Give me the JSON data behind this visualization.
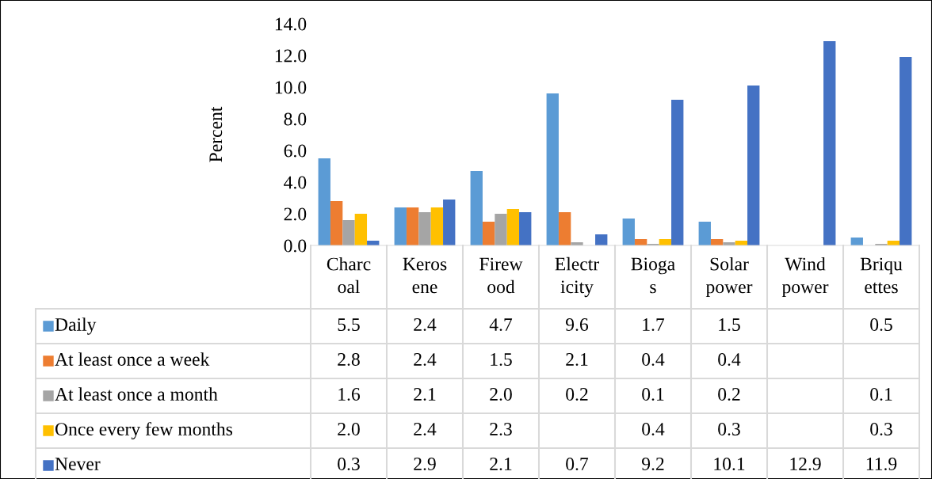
{
  "chart_data": {
    "type": "bar",
    "ylabel": "Percent",
    "categories": [
      "Charc\noal",
      "Keros\nene",
      "Firew\nood",
      "Electr\nicity",
      "Bioga\ns",
      "Solar\npower",
      "Wind\npower",
      "Briqu\nettes"
    ],
    "series": [
      {
        "name": "Daily",
        "color": "#5b9bd5",
        "values": [
          5.5,
          2.4,
          4.7,
          9.6,
          1.7,
          1.5,
          null,
          0.5
        ],
        "value_labels": [
          "5.5",
          "2.4",
          "4.7",
          "9.6",
          "1.7",
          "1.5",
          null,
          "0.5"
        ]
      },
      {
        "name": "At least once a week",
        "color": "#ed7d31",
        "values": [
          2.8,
          2.4,
          1.5,
          2.1,
          0.4,
          0.4,
          null,
          null
        ],
        "value_labels": [
          "2.8",
          "2.4",
          "1.5",
          "2.1",
          "0.4",
          "0.4",
          null,
          null
        ]
      },
      {
        "name": "At least once a month",
        "color": "#a5a5a5",
        "values": [
          1.6,
          2.1,
          2.0,
          0.2,
          0.1,
          0.2,
          null,
          0.1
        ],
        "value_labels": [
          "1.6",
          "2.1",
          "2.0",
          "0.2",
          "0.1",
          "0.2",
          null,
          "0.1"
        ]
      },
      {
        "name": "Once every few months",
        "color": "#ffc000",
        "values": [
          2.0,
          2.4,
          2.3,
          null,
          0.4,
          0.3,
          null,
          0.3
        ],
        "value_labels": [
          "2.0",
          "2.4",
          "2.3",
          null,
          "0.4",
          "0.3",
          null,
          "0.3"
        ]
      },
      {
        "name": "Never",
        "color": "#4472c4",
        "values": [
          0.3,
          2.9,
          2.1,
          0.7,
          9.2,
          10.1,
          12.9,
          11.9
        ],
        "value_labels": [
          "0.3",
          "2.9",
          "2.1",
          "0.7",
          "9.2",
          "10.1",
          "12.9",
          "11.9"
        ]
      }
    ],
    "ylim": [
      0,
      14
    ],
    "yticks": [
      {
        "value": 0,
        "label": "0.0"
      },
      {
        "value": 2,
        "label": "2.0"
      },
      {
        "value": 4,
        "label": "4.0"
      },
      {
        "value": 6,
        "label": "6.0"
      },
      {
        "value": 8,
        "label": "8.0"
      },
      {
        "value": 10,
        "label": "10.0"
      },
      {
        "value": 12,
        "label": "12.0"
      },
      {
        "value": 14,
        "label": "14.0"
      }
    ],
    "grid": false,
    "legend": "bottom"
  }
}
